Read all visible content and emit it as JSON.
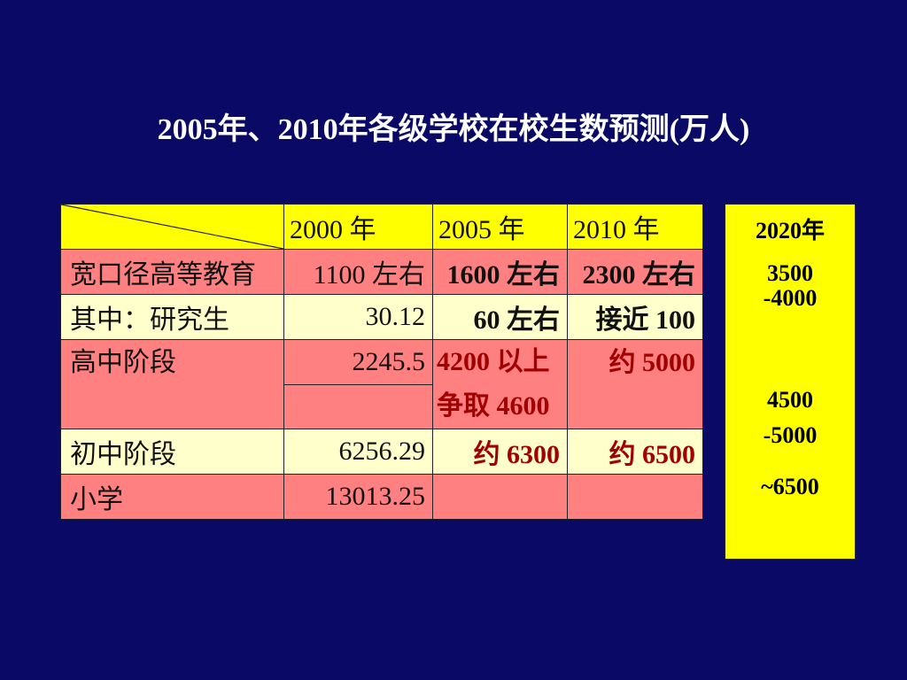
{
  "title": "2005年、2010年各级学校在校生数预测(万人)",
  "table": {
    "headers": [
      "2000 年",
      "2005 年",
      "2010 年"
    ],
    "rows": [
      {
        "label": "宽口径高等教育",
        "v2000": "1100 左右",
        "v2005": "1600 左右",
        "v2010": "2300 左右"
      },
      {
        "label": "其中：研究生",
        "v2000": "30.12",
        "v2005": "60 左右",
        "v2010": "接近 100"
      },
      {
        "label": "高中阶段",
        "v2000": "2245.5",
        "v2005_line1": "4200 以上",
        "v2005_line2": "争取 4600",
        "v2010": "约 5000"
      },
      {
        "label": "初中阶段",
        "v2000": "6256.29",
        "v2005": "约 6300",
        "v2010": "约 6500"
      },
      {
        "label": "小学",
        "v2000": "13013.25",
        "v2005": "",
        "v2010": ""
      }
    ]
  },
  "side_panel": {
    "header": "2020年",
    "higher_ed_1": "3500",
    "higher_ed_2": "-4000",
    "high_school_1": "4500",
    "high_school_2": "-5000",
    "middle_school": "~6500"
  },
  "colors": {
    "background": "#0a0a66",
    "header_row": "#ffff00",
    "pink_row": "#ff8080",
    "cream_row": "#ffffcc",
    "highlight_text": "#a00000"
  }
}
